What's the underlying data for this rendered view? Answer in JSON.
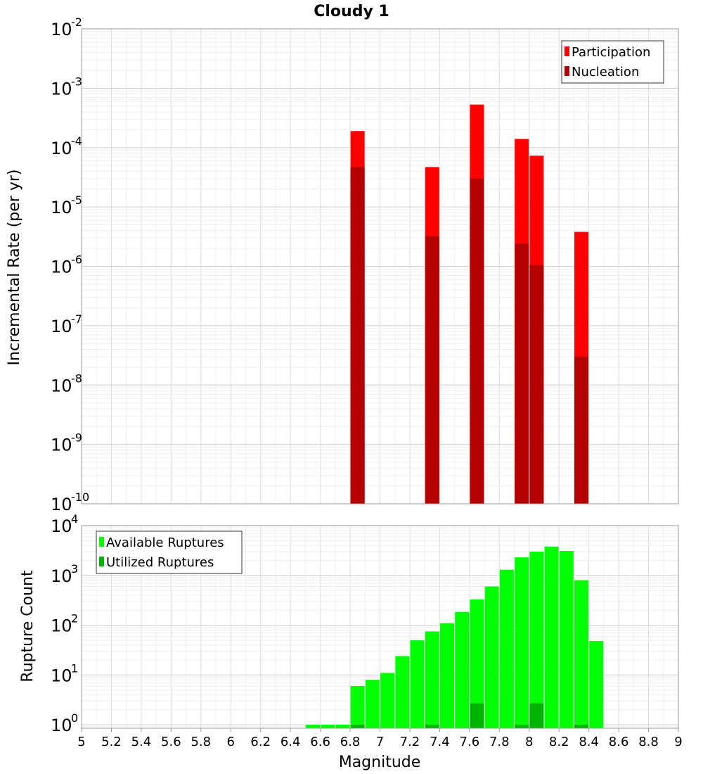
{
  "chart_data": [
    {
      "type": "bar",
      "title": "Cloudy 1",
      "xlabel": "",
      "ylabel": "Incremental Rate (per yr)",
      "yscale": "log",
      "xlim": [
        5,
        9
      ],
      "ylim_exp": [
        -10,
        -2
      ],
      "legend": {
        "placement": "top-right"
      },
      "grid": true,
      "x": [
        6.85,
        7.35,
        7.65,
        7.95,
        8.05,
        8.35
      ],
      "series": [
        {
          "name": "Participation",
          "color": "#ff0000",
          "values": [
            0.00019,
            4.7e-05,
            0.00053,
            0.00014,
            7.3e-05,
            3.8e-06
          ]
        },
        {
          "name": "Nucleation",
          "color": "#b30000",
          "values": [
            4.7e-05,
            3.2e-06,
            3e-05,
            2.4e-06,
            1.05e-06,
            3e-08
          ]
        }
      ],
      "y_ticks": [
        -10,
        -9,
        -8,
        -7,
        -6,
        -5,
        -4,
        -3,
        -2
      ]
    },
    {
      "type": "bar",
      "title": "",
      "xlabel": "Magnitude",
      "ylabel": "Rupture Count",
      "yscale": "log",
      "xlim": [
        5,
        9
      ],
      "ylim_exp": [
        -0.07,
        4
      ],
      "legend": {
        "placement": "top-left"
      },
      "grid": true,
      "x": [
        6.55,
        6.65,
        6.75,
        6.85,
        6.95,
        7.05,
        7.15,
        7.25,
        7.35,
        7.45,
        7.55,
        7.65,
        7.75,
        7.85,
        7.95,
        8.05,
        8.15,
        8.25,
        8.35,
        8.45
      ],
      "series": [
        {
          "name": "Available Ruptures",
          "color": "#00ff00",
          "values": [
            1,
            1,
            1,
            6,
            8,
            11,
            24,
            50,
            75,
            110,
            185,
            330,
            600,
            1300,
            2300,
            3000,
            3800,
            3100,
            800,
            48
          ]
        },
        {
          "name": "Utilized Ruptures",
          "color": "#00b300",
          "values": [
            0,
            0,
            0,
            1,
            0,
            0,
            0,
            0,
            1,
            0,
            0,
            2.7,
            0,
            0,
            1,
            2.7,
            0,
            0,
            1,
            0
          ]
        }
      ],
      "y_ticks": [
        0,
        1,
        2,
        3,
        4
      ],
      "x_ticks": [
        "5",
        "5.2",
        "5.4",
        "5.6",
        "5.8",
        "6",
        "6.2",
        "6.4",
        "6.6",
        "6.8",
        "7",
        "7.2",
        "7.4",
        "7.6",
        "7.8",
        "8",
        "8.2",
        "8.4",
        "8.6",
        "8.8",
        "9"
      ]
    }
  ]
}
